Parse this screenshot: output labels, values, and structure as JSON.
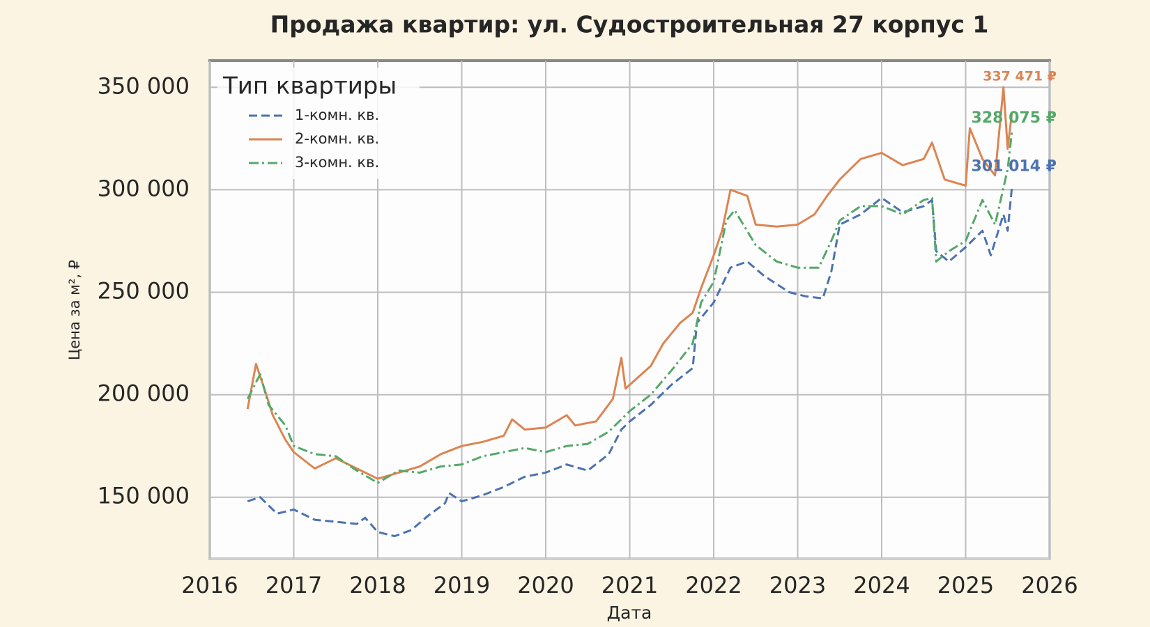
{
  "chart_data": {
    "type": "line",
    "title": "Продажа квартир: ул. Судостроительная 27 корпус 1",
    "x_label": "Дата",
    "y_label": "Цена за м², ₽",
    "legend_title": "Тип квартиры",
    "legend": "upper left",
    "grid": true,
    "xlim": [
      2016,
      2026
    ],
    "xticks": [
      2016,
      2017,
      2018,
      2019,
      2020,
      2021,
      2022,
      2023,
      2024,
      2025,
      2026
    ],
    "ylim": [
      120000,
      363000
    ],
    "yticks": [
      {
        "value": 150000,
        "label": "150 000"
      },
      {
        "value": 200000,
        "label": "200 000"
      },
      {
        "value": 250000,
        "label": "250 000"
      },
      {
        "value": 300000,
        "label": "300 000"
      },
      {
        "value": 350000,
        "label": "350 000"
      }
    ],
    "series": [
      {
        "name": "1-комн. кв.",
        "color": "#4c72b0",
        "dash": "12 6",
        "end_label": "301 014 ₽",
        "x": [
          2016.45,
          2016.6,
          2016.8,
          2017.0,
          2017.25,
          2017.5,
          2017.75,
          2017.85,
          2018.0,
          2018.2,
          2018.4,
          2018.6,
          2018.8,
          2018.85,
          2019.0,
          2019.25,
          2019.5,
          2019.75,
          2020.0,
          2020.25,
          2020.5,
          2020.75,
          2020.9,
          2021.0,
          2021.25,
          2021.5,
          2021.75,
          2021.8,
          2022.0,
          2022.2,
          2022.4,
          2022.6,
          2022.9,
          2023.1,
          2023.3,
          2023.4,
          2023.5,
          2023.75,
          2024.0,
          2024.25,
          2024.5,
          2024.6,
          2024.65,
          2024.8,
          2025.0,
          2025.2,
          2025.3,
          2025.45,
          2025.5,
          2025.55
        ],
        "values": [
          148000,
          150000,
          142000,
          144000,
          139000,
          138000,
          137000,
          140000,
          133000,
          131000,
          134000,
          141000,
          147000,
          152000,
          148000,
          151000,
          155000,
          160000,
          162000,
          166000,
          163000,
          171000,
          183000,
          187000,
          195000,
          205000,
          213000,
          235000,
          245000,
          262000,
          265000,
          258000,
          250000,
          248000,
          247000,
          260000,
          283000,
          288000,
          296000,
          289000,
          292000,
          295000,
          270000,
          265000,
          272000,
          280000,
          268000,
          288000,
          280000,
          301014
        ]
      },
      {
        "name": "2-комн. кв.",
        "color": "#dd8452",
        "dash": "",
        "end_label": "337 471 ₽",
        "x": [
          2016.45,
          2016.55,
          2016.65,
          2016.75,
          2016.9,
          2017.0,
          2017.25,
          2017.5,
          2017.75,
          2018.0,
          2018.25,
          2018.5,
          2018.75,
          2019.0,
          2019.25,
          2019.5,
          2019.6,
          2019.75,
          2020.0,
          2020.25,
          2020.35,
          2020.6,
          2020.8,
          2020.9,
          2020.95,
          2021.25,
          2021.4,
          2021.6,
          2021.75,
          2021.85,
          2022.0,
          2022.1,
          2022.2,
          2022.4,
          2022.5,
          2022.75,
          2023.0,
          2023.2,
          2023.35,
          2023.5,
          2023.75,
          2024.0,
          2024.25,
          2024.5,
          2024.6,
          2024.75,
          2025.0,
          2025.05,
          2025.2,
          2025.35,
          2025.45,
          2025.5,
          2025.55
        ],
        "values": [
          193000,
          215000,
          203000,
          190000,
          178000,
          172000,
          164000,
          169000,
          164000,
          159000,
          162000,
          165000,
          171000,
          175000,
          177000,
          180000,
          188000,
          183000,
          184000,
          190000,
          185000,
          187000,
          198000,
          218000,
          203000,
          214000,
          225000,
          235000,
          240000,
          252000,
          268000,
          280000,
          300000,
          297000,
          283000,
          282000,
          283000,
          288000,
          297000,
          305000,
          315000,
          318000,
          312000,
          315000,
          323000,
          305000,
          302000,
          330000,
          315000,
          307000,
          350000,
          320000,
          337471
        ]
      },
      {
        "name": "3-комн. кв.",
        "color": "#55a868",
        "dash": "14 5 3 5",
        "end_label": "328 075 ₽",
        "x": [
          2016.45,
          2016.6,
          2016.7,
          2016.9,
          2017.0,
          2017.25,
          2017.5,
          2017.75,
          2018.0,
          2018.25,
          2018.5,
          2018.75,
          2019.0,
          2019.25,
          2019.5,
          2019.75,
          2020.0,
          2020.25,
          2020.5,
          2020.75,
          2021.0,
          2021.25,
          2021.5,
          2021.75,
          2021.85,
          2022.0,
          2022.15,
          2022.25,
          2022.5,
          2022.75,
          2023.0,
          2023.25,
          2023.4,
          2023.5,
          2023.75,
          2024.0,
          2024.25,
          2024.5,
          2024.6,
          2024.65,
          2024.8,
          2025.0,
          2025.2,
          2025.35,
          2025.5,
          2025.55
        ],
        "values": [
          198000,
          210000,
          195000,
          185000,
          175000,
          171000,
          170000,
          163000,
          157000,
          163000,
          162000,
          165000,
          166000,
          170000,
          172000,
          174000,
          172000,
          175000,
          176000,
          182000,
          192000,
          200000,
          212000,
          225000,
          245000,
          255000,
          285000,
          290000,
          273000,
          265000,
          262000,
          262000,
          275000,
          285000,
          292000,
          292000,
          288000,
          295000,
          296000,
          265000,
          270000,
          275000,
          295000,
          283000,
          310000,
          328075
        ]
      }
    ]
  }
}
